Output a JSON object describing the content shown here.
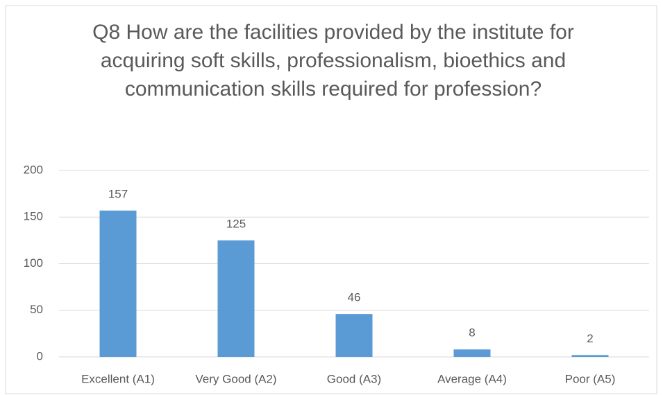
{
  "chart_data": {
    "type": "bar",
    "title": "Q8 How are the facilities provided by the institute for acquiring soft skills, professionalism, bioethics and communication skills required for profession?",
    "categories": [
      "Excellent (A1)",
      "Very Good (A2)",
      "Good (A3)",
      "Average (A4)",
      "Poor (A5)"
    ],
    "values": [
      157,
      125,
      46,
      8,
      2
    ],
    "color": "#5b9bd5",
    "ylim": [
      0,
      200
    ],
    "yticks": [
      0,
      50,
      100,
      150,
      200
    ],
    "grid": true
  }
}
